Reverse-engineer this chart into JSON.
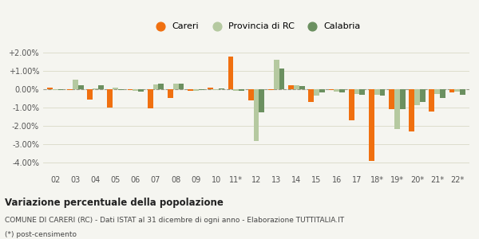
{
  "years": [
    "02",
    "03",
    "04",
    "05",
    "06",
    "07",
    "08",
    "09",
    "10",
    "11*",
    "12",
    "13",
    "14",
    "15",
    "16",
    "17",
    "18*",
    "19*",
    "20*",
    "21*",
    "22*"
  ],
  "careri": [
    0.1,
    -0.05,
    -0.55,
    -1.0,
    -0.05,
    -1.05,
    -0.5,
    -0.1,
    0.1,
    1.75,
    -0.6,
    -0.05,
    0.2,
    -0.7,
    -0.05,
    -1.7,
    -3.9,
    -1.1,
    -2.3,
    -1.2,
    -0.2
  ],
  "provincia_rc": [
    -0.05,
    0.5,
    0.05,
    0.1,
    -0.1,
    0.25,
    0.3,
    -0.1,
    -0.05,
    -0.1,
    -2.8,
    1.6,
    0.2,
    -0.35,
    -0.15,
    -0.25,
    -0.3,
    -2.15,
    -0.85,
    -0.25,
    -0.15
  ],
  "calabria": [
    -0.05,
    0.2,
    0.2,
    -0.05,
    -0.15,
    0.3,
    0.3,
    -0.05,
    0.05,
    -0.1,
    -1.25,
    1.1,
    0.15,
    -0.2,
    -0.2,
    -0.3,
    -0.35,
    -1.1,
    -0.7,
    -0.5,
    -0.3
  ],
  "color_careri": "#f07010",
  "color_provincia": "#b5c9a0",
  "color_calabria": "#6b9060",
  "ylim_min": -4.5,
  "ylim_max": 2.5,
  "ytick_vals": [
    -4.0,
    -3.0,
    -2.0,
    -1.0,
    0.0,
    1.0,
    2.0
  ],
  "ytick_labels": [
    "-4.00%",
    "-3.00%",
    "-2.00%",
    "-1.00%",
    "0.00%",
    "+1.00%",
    "+2.00%"
  ],
  "title": "Variazione percentuale della popolazione",
  "subtitle": "COMUNE DI CARERI (RC) - Dati ISTAT al 31 dicembre di ogni anno - Elaborazione TUTTITALIA.IT",
  "footnote": "(*) post-censimento",
  "bg_color": "#f5f5f0",
  "grid_color": "#ddddcc"
}
